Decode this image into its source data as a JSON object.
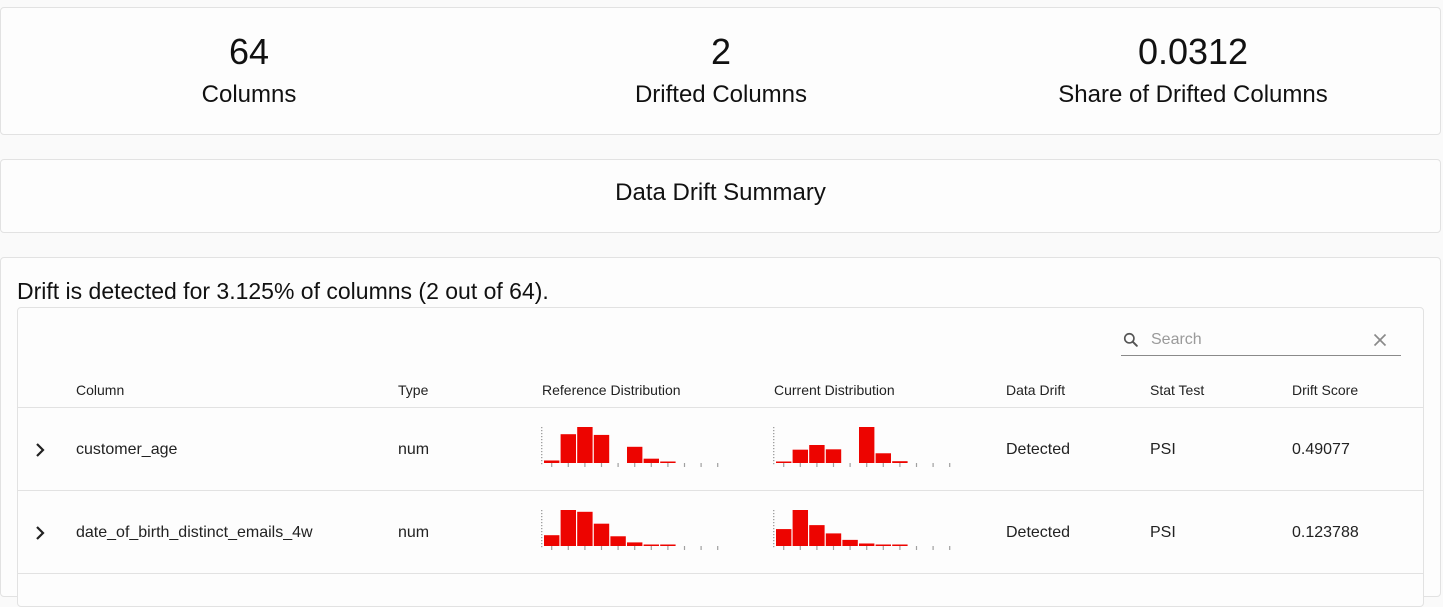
{
  "metrics": [
    {
      "value": "64",
      "label": "Columns"
    },
    {
      "value": "2",
      "label": "Drifted Columns"
    },
    {
      "value": "0.0312",
      "label": "Share of Drifted Columns"
    }
  ],
  "summary": {
    "title": "Data Drift Summary"
  },
  "detail": {
    "message": "Drift is detected for 3.125% of columns (2 out of 64)."
  },
  "search": {
    "placeholder": "Search",
    "value": ""
  },
  "table": {
    "headers": {
      "column": "Column",
      "type": "Type",
      "reference": "Reference Distribution",
      "current": "Current Distribution",
      "drift": "Data Drift",
      "stat_test": "Stat Test",
      "score": "Drift Score"
    },
    "rows": [
      {
        "column": "customer_age",
        "type": "num",
        "reference_bins": [
          0.07,
          0.8,
          1.0,
          0.78,
          0,
          0.45,
          0.12,
          0.02,
          0,
          0,
          0
        ],
        "current_bins": [
          0.02,
          0.37,
          0.5,
          0.38,
          0,
          1.0,
          0.27,
          0.05,
          0,
          0,
          0
        ],
        "data_drift": "Detected",
        "stat_test": "PSI",
        "drift_score": "0.49077"
      },
      {
        "column": "date_of_birth_distinct_emails_4w",
        "type": "num",
        "reference_bins": [
          0.3,
          1.0,
          0.95,
          0.62,
          0.27,
          0.1,
          0.04,
          0.01,
          0,
          0,
          0
        ],
        "current_bins": [
          0.47,
          1.0,
          0.58,
          0.35,
          0.17,
          0.07,
          0.04,
          0.02,
          0,
          0,
          0
        ],
        "data_drift": "Detected",
        "stat_test": "PSI",
        "drift_score": "0.123788"
      }
    ]
  },
  "colors": {
    "histogram": "#ed0400",
    "tick": "#a0a0a0",
    "border": "#e2e2e2"
  },
  "icons": {
    "search": "search-icon",
    "clear": "close-icon",
    "expand": "chevron-right-icon"
  }
}
